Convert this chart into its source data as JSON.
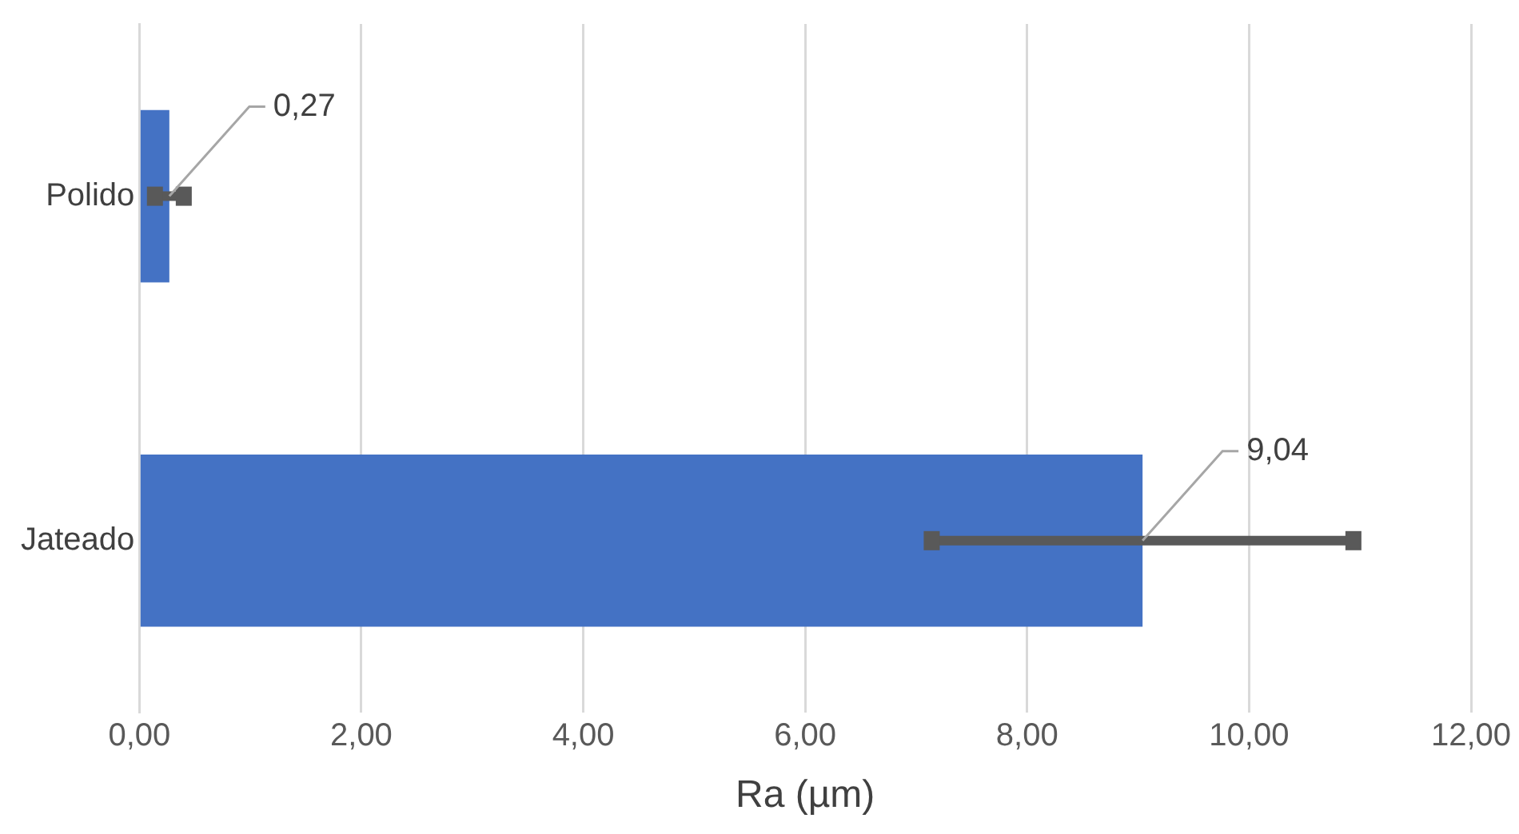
{
  "chart_data": {
    "type": "bar",
    "orientation": "horizontal",
    "xlabel": "Ra (µm)",
    "categories": [
      "Polido",
      "Jateado"
    ],
    "values": [
      0.27,
      9.04
    ],
    "color": "#4472c4",
    "errors": [
      0.13,
      1.9
    ],
    "value_labels": [
      "0,27",
      "9,04"
    ],
    "xlim": [
      0,
      12
    ],
    "xticks": [
      {
        "value": 0,
        "label": "0,00"
      },
      {
        "value": 2,
        "label": "2,00"
      },
      {
        "value": 4,
        "label": "4,00"
      },
      {
        "value": 6,
        "label": "6,00"
      },
      {
        "value": 8,
        "label": "8,00"
      },
      {
        "value": 10,
        "label": "10,00"
      },
      {
        "value": 12,
        "label": "12,00"
      }
    ],
    "grid": "x"
  }
}
